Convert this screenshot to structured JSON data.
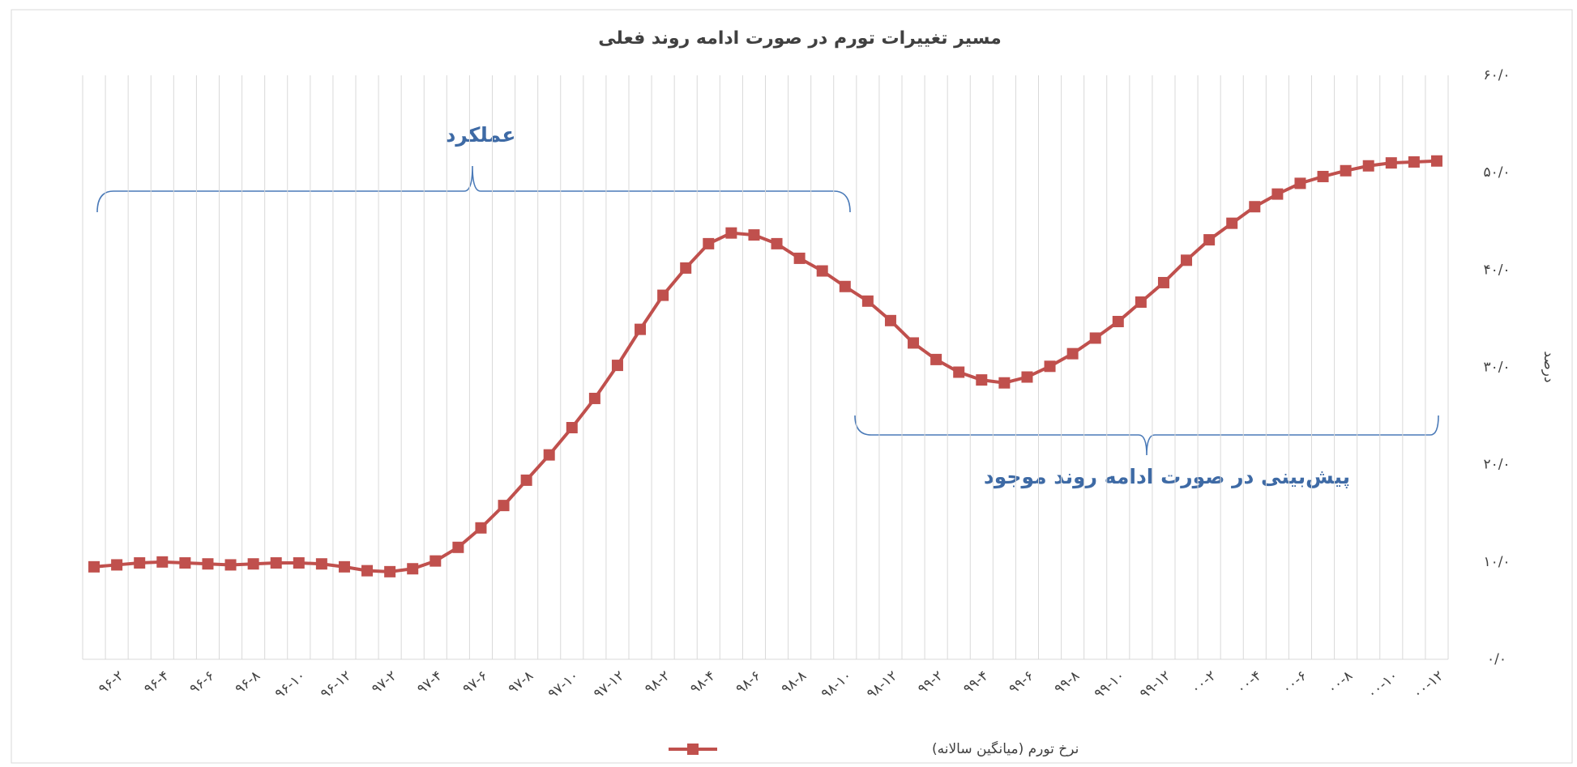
{
  "chart_data": {
    "type": "line",
    "title": "مسیر تغییرات تورم در صورت ادامه روند فعلی",
    "y_label": "درصد",
    "annotations": [
      "عملکرد",
      "پیش‌بینی در صورت ادامه روند موجود"
    ],
    "categories": [
      null,
      "۹۶-۲",
      null,
      "۹۶-۴",
      null,
      "۹۶-۶",
      null,
      "۹۶-۸",
      null,
      "۹۶-۱۰",
      null,
      "۹۶-۱۲",
      null,
      "۹۷-۲",
      null,
      "۹۷-۴",
      null,
      "۹۷-۶",
      null,
      "۹۷-۸",
      null,
      "۹۷-۱۰",
      null,
      "۹۷-۱۲",
      null,
      "۹۸-۲",
      null,
      "۹۸-۴",
      null,
      "۹۸-۶",
      null,
      "۹۸-۸",
      null,
      "۹۸-۱۰",
      null,
      "۹۸-۱۲",
      null,
      "۹۹-۲",
      null,
      "۹۹-۴",
      null,
      "۹۹-۶",
      null,
      "۹۹-۸",
      null,
      "۹۹-۱۰",
      null,
      "۹۹-۱۲",
      null,
      "۰۰-۲",
      null,
      "۰۰-۴",
      null,
      "۰۰-۶",
      null,
      "۰۰-۸",
      null,
      "۰۰-۱۰",
      null,
      "۰۰-۱۲"
    ],
    "series": [
      {
        "name": "نرخ تورم (میانگین سالانه)",
        "color": "#c0504d",
        "values": [
          9.5,
          9.7,
          9.9,
          10.0,
          9.9,
          9.8,
          9.7,
          9.8,
          9.9,
          9.9,
          9.8,
          9.5,
          9.1,
          9.0,
          9.3,
          10.1,
          11.5,
          13.5,
          15.8,
          18.4,
          21.0,
          23.8,
          26.8,
          30.2,
          33.9,
          37.4,
          40.2,
          42.7,
          43.8,
          43.6,
          42.7,
          41.2,
          39.9,
          38.3,
          36.8,
          34.8,
          32.5,
          30.8,
          29.5,
          28.7,
          28.4,
          29.0,
          30.1,
          31.4,
          33.0,
          34.7,
          36.7,
          38.7,
          41.0,
          43.1,
          44.8,
          46.5,
          47.8,
          48.9,
          49.6,
          50.2,
          50.7,
          51.0,
          51.1,
          51.2
        ]
      }
    ],
    "ylim": [
      0,
      60
    ],
    "yticks": [
      {
        "value": 0,
        "label": "۰/۰"
      },
      {
        "value": 10,
        "label": "۱۰/۰"
      },
      {
        "value": 20,
        "label": "۲۰/۰"
      },
      {
        "value": 30,
        "label": "۳۰/۰"
      },
      {
        "value": 40,
        "label": "۴۰/۰"
      },
      {
        "value": 50,
        "label": "۵۰/۰"
      },
      {
        "value": 60,
        "label": "۶۰/۰"
      }
    ],
    "grid": "x",
    "y_axis_side": "right",
    "legend": "bottom"
  }
}
